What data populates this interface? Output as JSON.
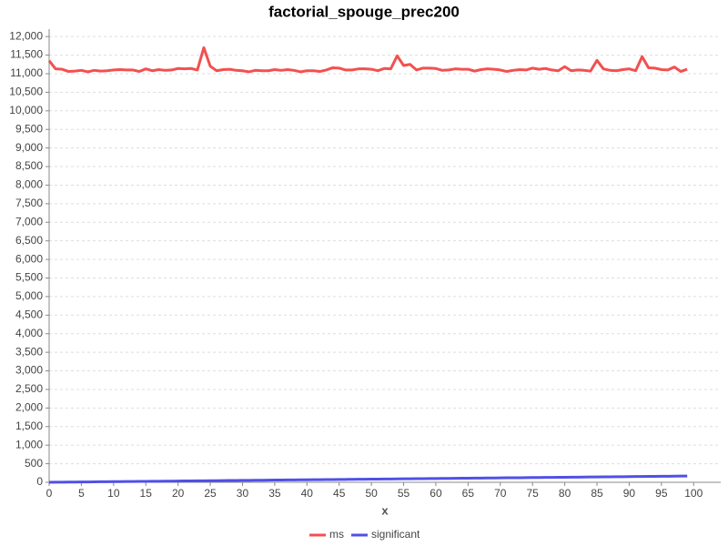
{
  "chart_data": {
    "type": "line",
    "title": "factorial_spouge_prec200",
    "x_label": "x",
    "x": [
      0,
      1,
      2,
      3,
      4,
      5,
      6,
      7,
      8,
      9,
      10,
      11,
      12,
      13,
      14,
      15,
      16,
      17,
      18,
      19,
      20,
      21,
      22,
      23,
      24,
      25,
      26,
      27,
      28,
      29,
      30,
      31,
      32,
      33,
      34,
      35,
      36,
      37,
      38,
      39,
      40,
      41,
      42,
      43,
      44,
      45,
      46,
      47,
      48,
      49,
      50,
      51,
      52,
      53,
      54,
      55,
      56,
      57,
      58,
      59,
      60,
      61,
      62,
      63,
      64,
      65,
      66,
      67,
      68,
      69,
      70,
      71,
      72,
      73,
      74,
      75,
      76,
      77,
      78,
      79,
      80,
      81,
      82,
      83,
      84,
      85,
      86,
      87,
      88,
      89,
      90,
      91,
      92,
      93,
      94,
      95,
      96,
      97,
      98,
      99
    ],
    "series": [
      {
        "name": "ms",
        "color": "#f25050",
        "values": [
          11350,
          11130,
          11120,
          11060,
          11070,
          11090,
          11050,
          11090,
          11070,
          11080,
          11100,
          11110,
          11100,
          11100,
          11060,
          11130,
          11080,
          11110,
          11090,
          11100,
          11140,
          11130,
          11140,
          11100,
          11700,
          11200,
          11080,
          11110,
          11120,
          11090,
          11080,
          11050,
          11090,
          11080,
          11080,
          11110,
          11090,
          11110,
          11090,
          11050,
          11080,
          11080,
          11060,
          11100,
          11160,
          11150,
          11100,
          11100,
          11130,
          11130,
          11120,
          11080,
          11140,
          11130,
          11480,
          11220,
          11250,
          11100,
          11150,
          11150,
          11140,
          11090,
          11100,
          11130,
          11120,
          11120,
          11070,
          11110,
          11130,
          11120,
          11100,
          11060,
          11090,
          11110,
          11100,
          11150,
          11120,
          11140,
          11100,
          11080,
          11190,
          11080,
          11100,
          11090,
          11070,
          11360,
          11130,
          11090,
          11080,
          11110,
          11130,
          11080,
          11460,
          11160,
          11150,
          11110,
          11100,
          11180,
          11060,
          11120
        ]
      },
      {
        "name": "significant",
        "color": "#5050e8",
        "values": [
          0,
          2,
          3,
          5,
          7,
          9,
          10,
          12,
          14,
          15,
          17,
          19,
          20,
          22,
          24,
          26,
          27,
          29,
          31,
          32,
          34,
          36,
          37,
          39,
          41,
          43,
          44,
          46,
          48,
          49,
          51,
          53,
          54,
          56,
          58,
          60,
          61,
          63,
          65,
          66,
          68,
          70,
          71,
          73,
          75,
          77,
          78,
          80,
          82,
          83,
          85,
          87,
          88,
          90,
          92,
          94,
          95,
          97,
          99,
          100,
          102,
          104,
          105,
          107,
          109,
          111,
          112,
          114,
          116,
          117,
          119,
          121,
          122,
          124,
          126,
          128,
          129,
          131,
          133,
          134,
          136,
          138,
          139,
          141,
          143,
          145,
          146,
          148,
          150,
          151,
          153,
          155,
          156,
          158,
          160,
          162,
          163,
          165,
          167,
          168
        ]
      }
    ],
    "xlim": [
      0,
      104.2
    ],
    "ylim": [
      0,
      12200
    ],
    "xticks": [
      0,
      5,
      10,
      15,
      20,
      25,
      30,
      35,
      40,
      45,
      50,
      55,
      60,
      65,
      70,
      75,
      80,
      85,
      90,
      95,
      100
    ],
    "yticks": [
      0,
      500,
      {
        "value": 1000,
        "label": "1,000"
      },
      {
        "value": 1500,
        "label": "1,500"
      },
      {
        "value": 2000,
        "label": "2,000"
      },
      {
        "value": 2500,
        "label": "2,500"
      },
      {
        "value": 3000,
        "label": "3,000"
      },
      {
        "value": 3500,
        "label": "3,500"
      },
      {
        "value": 4000,
        "label": "4,000"
      },
      {
        "value": 4500,
        "label": "4,500"
      },
      {
        "value": 5000,
        "label": "5,000"
      },
      {
        "value": 5500,
        "label": "5,500"
      },
      {
        "value": 6000,
        "label": "6,000"
      },
      {
        "value": 6500,
        "label": "6,500"
      },
      {
        "value": 7000,
        "label": "7,000"
      },
      {
        "value": 7500,
        "label": "7,500"
      },
      {
        "value": 8000,
        "label": "8,000"
      },
      {
        "value": 8500,
        "label": "8,500"
      },
      {
        "value": 9000,
        "label": "9,000"
      },
      {
        "value": 9500,
        "label": "9,500"
      },
      {
        "value": 10000,
        "label": "10,000"
      },
      {
        "value": 10500,
        "label": "10,500"
      },
      {
        "value": 11000,
        "label": "11,000"
      },
      {
        "value": 11500,
        "label": "11,500"
      },
      {
        "value": 12000,
        "label": "12,000"
      }
    ],
    "grid": true
  }
}
